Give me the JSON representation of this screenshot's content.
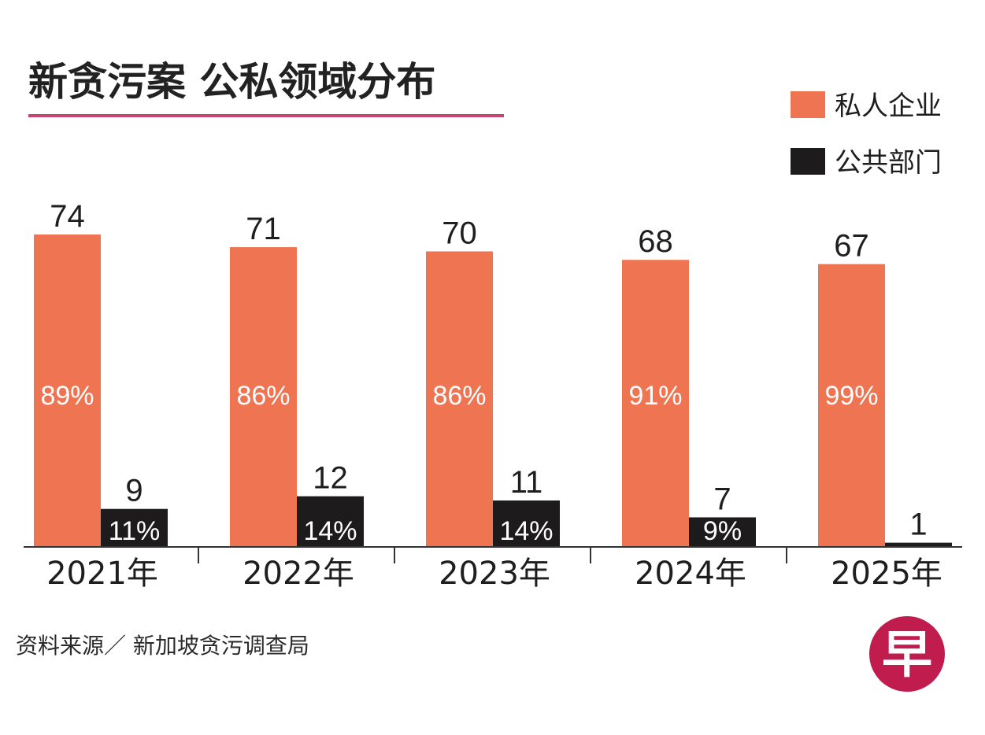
{
  "colors": {
    "private": "#ef7552",
    "public": "#1e1b1c",
    "title_underline": "#c8456f",
    "logo_bg": "#c01d4e"
  },
  "logo": {
    "glyph": "早"
  },
  "chart_data": {
    "type": "bar",
    "title": "新贪污案 公私领域分布",
    "categories": [
      "2021年",
      "2022年",
      "2023年",
      "2024年",
      "2025年"
    ],
    "series": [
      {
        "name": "私人企业",
        "values": [
          74,
          71,
          70,
          68,
          67
        ],
        "percent_labels": [
          "89%",
          "86%",
          "86%",
          "91%",
          "99%"
        ]
      },
      {
        "name": "公共部门",
        "values": [
          9,
          12,
          11,
          7,
          1
        ],
        "percent_labels": [
          "11%",
          "14%",
          "14%",
          "9%",
          ""
        ]
      }
    ],
    "ylim": [
      0,
      74
    ],
    "xlabel": "",
    "ylabel": "",
    "grid": false,
    "legend": "top-right",
    "source": "资料来源／ 新加坡贪污调查局"
  }
}
